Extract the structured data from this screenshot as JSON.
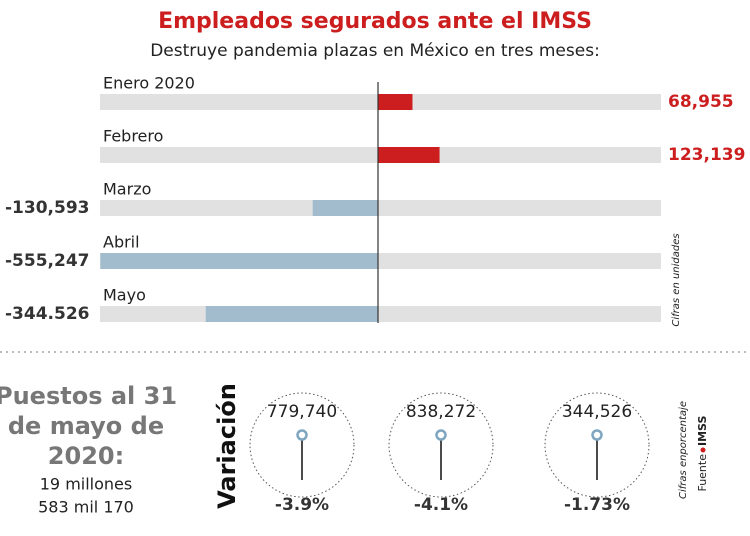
{
  "chart_data": {
    "type": "bar",
    "orientation": "horizontal",
    "title": "Empleados segurados ante el IMSS",
    "subtitle": "Destruye pandemia plazas en México en tres meses:",
    "categories": [
      "Enero 2020",
      "Febrero",
      "Marzo",
      "Abril",
      "Mayo"
    ],
    "values": [
      68955,
      123139,
      -130593,
      -555247,
      -344526
    ],
    "value_labels": [
      "68,955",
      "123,139",
      "-130,593",
      "-555,247",
      "-344.526"
    ],
    "positive_color": "#cc1e1e",
    "negative_color": "#a3bccd",
    "track_color": "#e1e1e1",
    "xlim": [
      -556000,
      566000
    ],
    "unit_note": "Cifras en unidades"
  },
  "summary": {
    "heading_lines": [
      "Puestos al 31",
      "de mayo de",
      "2020:"
    ],
    "total_lines": [
      "19 millones",
      "583 mil 170"
    ],
    "variation_label": "Variación",
    "items": [
      {
        "value": "779,740",
        "percent": "-3.9%"
      },
      {
        "value": "838,272",
        "percent": "-4.1%"
      },
      {
        "value": "344,526",
        "percent": "-1.73%"
      }
    ],
    "percent_note": "Cifras enporcentaje",
    "source_label": "Fuente",
    "source": "IMSS"
  }
}
